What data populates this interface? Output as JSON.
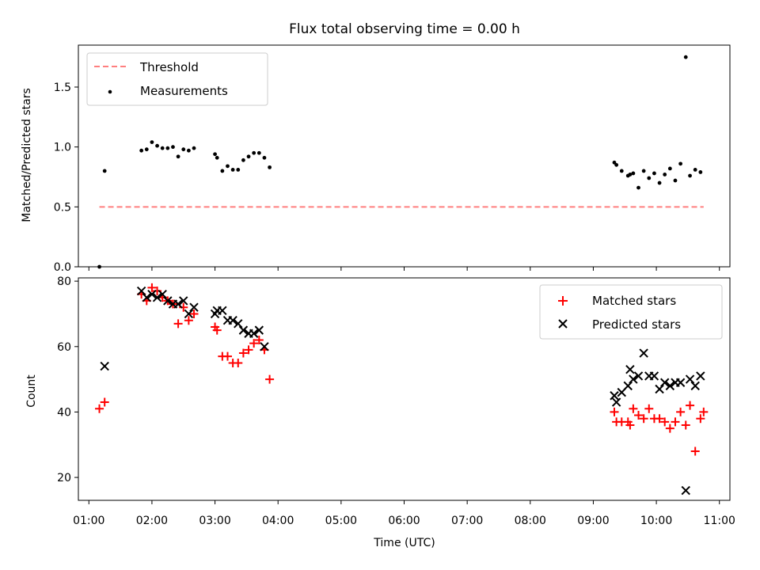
{
  "chart_data": [
    {
      "type": "scatter",
      "title": "Flux total observing time = 0.00 h",
      "xlabel": "",
      "ylabel": "Matched/Predicted stars",
      "xlim": [
        "00:50",
        "11:10"
      ],
      "ylim": [
        0,
        1.85
      ],
      "yticks": [
        0.0,
        0.5,
        1.0,
        1.5
      ],
      "ytick_labels": [
        "0.0",
        "0.5",
        "1.0",
        "1.5"
      ],
      "grid": false,
      "legend_position": "top-left",
      "colors": {
        "threshold": "#ff7f7f",
        "measurements": "#000000"
      },
      "series": [
        {
          "name": "Threshold",
          "kind": "dashed-line",
          "x": [
            "01:10",
            "10:45"
          ],
          "y": [
            0.5,
            0.5
          ]
        },
        {
          "name": "Measurements",
          "kind": "dots",
          "x": [
            "01:10",
            "01:15",
            "01:50",
            "01:55",
            "02:00",
            "02:05",
            "02:10",
            "02:15",
            "02:20",
            "02:25",
            "02:30",
            "02:35",
            "02:40",
            "02:45",
            "03:00",
            "03:02",
            "03:07",
            "03:12",
            "03:17",
            "03:22",
            "03:27",
            "03:32",
            "03:37",
            "03:42",
            "03:47",
            "03:52",
            "09:20",
            "09:22",
            "09:27",
            "09:33",
            "09:35",
            "09:38",
            "09:43",
            "09:48",
            "09:53",
            "09:58",
            "10:03",
            "10:08",
            "10:13",
            "10:18",
            "10:23",
            "10:28",
            "10:32",
            "10:37",
            "10:42",
            "10:45"
          ],
          "y": [
            0.0,
            0.8,
            0.97,
            0.98,
            1.04,
            1.01,
            0.99,
            0.99,
            1.0,
            0.92,
            0.98,
            0.97,
            0.99,
            null,
            0.94,
            0.91,
            0.8,
            0.84,
            0.81,
            0.81,
            0.89,
            0.92,
            0.95,
            0.95,
            0.91,
            0.83,
            0.87,
            0.85,
            0.8,
            0.76,
            0.77,
            0.78,
            0.66,
            0.8,
            0.74,
            0.78,
            0.7,
            0.77,
            0.82,
            0.72,
            0.86,
            1.75,
            0.76,
            0.81,
            0.79,
            null
          ]
        }
      ]
    },
    {
      "type": "scatter",
      "title": "",
      "xlabel": "Time (UTC)",
      "ylabel": "Count",
      "xlim": [
        "00:50",
        "11:10"
      ],
      "ylim": [
        13,
        81
      ],
      "yticks": [
        20,
        40,
        60,
        80
      ],
      "ytick_labels": [
        "20",
        "40",
        "60",
        "80"
      ],
      "xticks": [
        "01:00",
        "02:00",
        "03:00",
        "04:00",
        "05:00",
        "06:00",
        "07:00",
        "08:00",
        "09:00",
        "10:00",
        "11:00"
      ],
      "grid": false,
      "legend_position": "top-right",
      "colors": {
        "matched": "#ff0000",
        "predicted": "#000000"
      },
      "series": [
        {
          "name": "Matched stars",
          "marker": "+",
          "x": [
            "01:10",
            "01:15",
            "01:50",
            "01:55",
            "02:00",
            "02:05",
            "02:10",
            "02:15",
            "02:20",
            "02:25",
            "02:30",
            "02:35",
            "02:40",
            "02:45",
            "03:00",
            "03:02",
            "03:07",
            "03:12",
            "03:17",
            "03:22",
            "03:27",
            "03:32",
            "03:37",
            "03:42",
            "03:47",
            "03:52",
            "09:20",
            "09:22",
            "09:27",
            "09:33",
            "09:35",
            "09:38",
            "09:43",
            "09:48",
            "09:53",
            "09:58",
            "10:03",
            "10:08",
            "10:13",
            "10:18",
            "10:23",
            "10:28",
            "10:32",
            "10:37",
            "10:42",
            "10:45"
          ],
          "y": [
            41,
            43,
            76,
            74,
            78,
            77,
            75,
            74,
            73,
            67,
            72,
            68,
            70,
            null,
            66,
            65,
            57,
            57,
            55,
            55,
            58,
            59,
            61,
            62,
            59,
            50,
            40,
            37,
            37,
            37,
            36,
            41,
            39,
            38,
            41,
            38,
            38,
            37,
            35,
            37,
            40,
            36,
            42,
            28,
            38,
            40
          ]
        },
        {
          "name": "Predicted stars",
          "marker": "x",
          "x": [
            "01:15",
            "01:50",
            "01:55",
            "02:00",
            "02:05",
            "02:10",
            "02:15",
            "02:20",
            "02:25",
            "02:30",
            "02:35",
            "02:40",
            "02:45",
            "03:00",
            "03:02",
            "03:07",
            "03:12",
            "03:17",
            "03:22",
            "03:27",
            "03:32",
            "03:37",
            "03:42",
            "03:47",
            "03:52",
            "09:20",
            "09:22",
            "09:27",
            "09:33",
            "09:35",
            "09:38",
            "09:43",
            "09:48",
            "09:53",
            "09:58",
            "10:03",
            "10:08",
            "10:13",
            "10:18",
            "10:23",
            "10:28",
            "10:32",
            "10:37",
            "10:42",
            "10:45"
          ],
          "y": [
            54,
            77,
            75,
            76,
            75,
            76,
            74,
            73,
            73,
            74,
            70,
            72,
            null,
            70,
            71,
            71,
            68,
            68,
            67,
            65,
            64,
            64,
            65,
            60,
            null,
            45,
            43,
            46,
            48,
            53,
            50,
            51,
            58,
            51,
            51,
            47,
            49,
            48,
            49,
            49,
            16,
            50,
            48,
            51,
            null
          ]
        }
      ]
    }
  ]
}
